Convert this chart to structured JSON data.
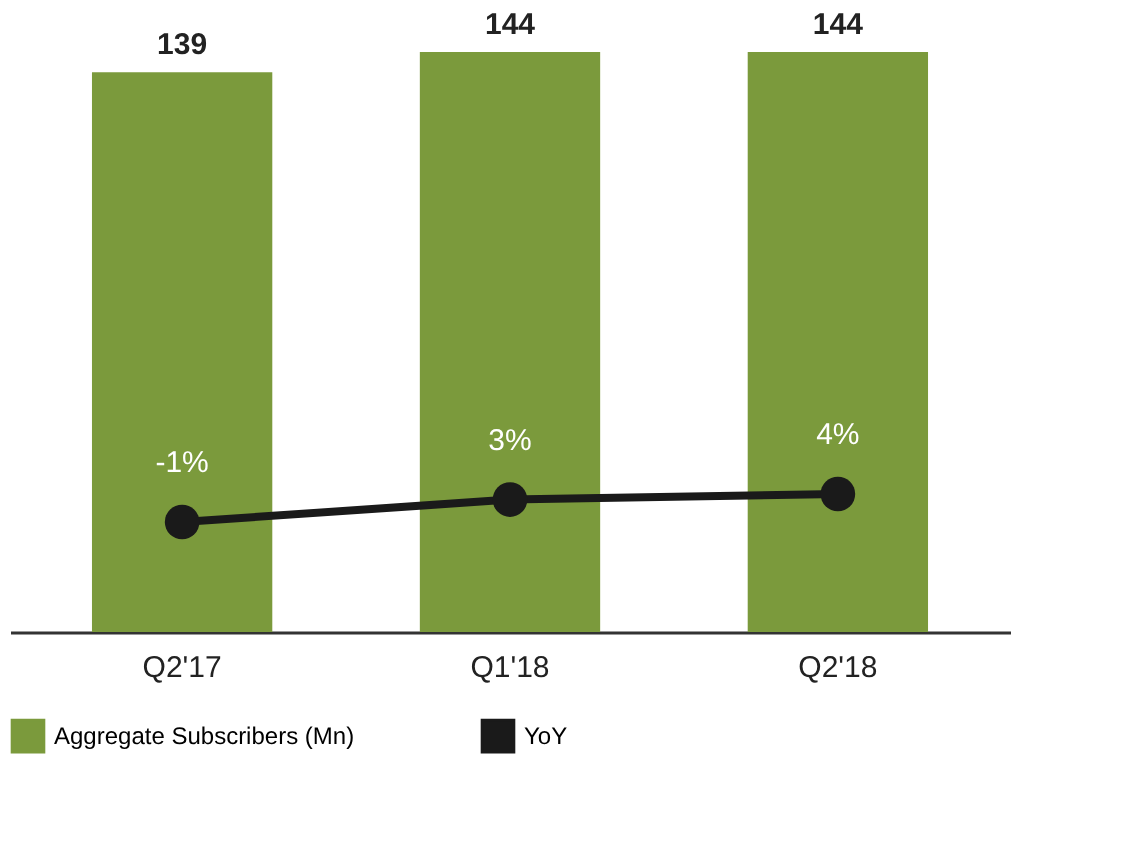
{
  "chart_data": {
    "type": "bar",
    "categories": [
      "Q2'17",
      "Q1'18",
      "Q2'18"
    ],
    "tick_labels": "x",
    "grid": false,
    "legend": "bottom",
    "marker": "circle",
    "line_style": "solid",
    "series": [
      {
        "name": "Aggregate Subscribers (Mn)",
        "color": "#7b9a3c",
        "values": [
          139,
          144,
          144
        ],
        "value_labels": [
          "139",
          "144",
          "144"
        ]
      },
      {
        "name": "YoY",
        "type": "line",
        "axis": "y2",
        "color": "#1a1a1a",
        "values": [
          -1,
          3,
          4
        ],
        "value_labels": [
          "-1%",
          "3%",
          "4%"
        ]
      }
    ]
  }
}
